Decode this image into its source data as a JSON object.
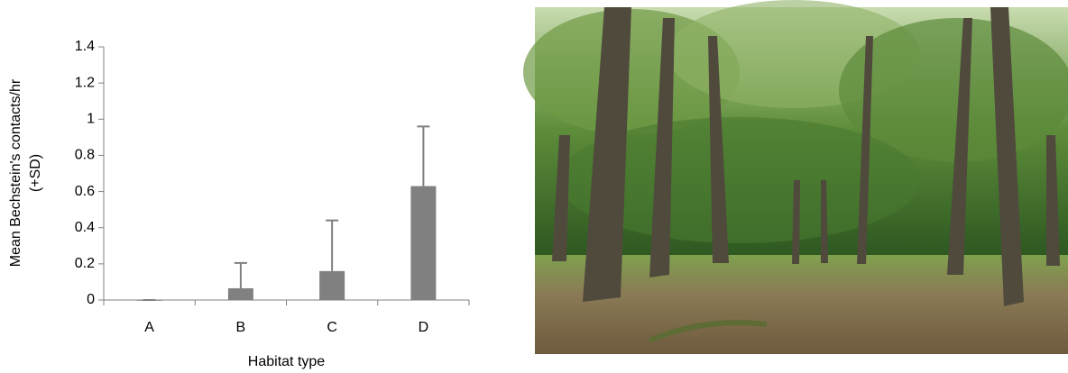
{
  "chart_data": {
    "type": "bar",
    "ylabel": [
      "Mean Bechstein's contacts/hr",
      "(+SD)"
    ],
    "xlabel": "Habitat type",
    "categories": [
      "A",
      "B",
      "C",
      "D"
    ],
    "values": [
      0,
      0.065,
      0.16,
      0.63
    ],
    "errors": [
      0,
      0.14,
      0.28,
      0.33
    ],
    "color": "#808080",
    "ylim": [
      0,
      1.4
    ],
    "yticks": [
      0,
      0.2,
      0.4,
      0.6,
      0.8,
      1,
      1.2,
      1.4
    ]
  }
}
